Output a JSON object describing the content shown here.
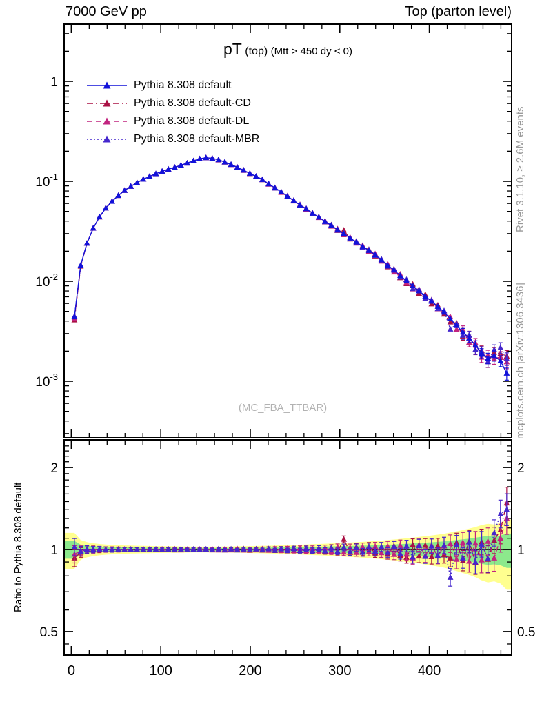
{
  "header": {
    "left": "7000 GeV pp",
    "right": "Top (parton level)"
  },
  "title": {
    "main": "pT",
    "scale": "(top)",
    "cut": "(Mtt > 450 dy < 0)"
  },
  "watermark": "(MC_FBA_TTBAR)",
  "side_note_top": "Rivet 3.1.10, ≥ 2.6M events",
  "side_note_bottom": "mcplots.cern.ch [arXiv:1306.3436]",
  "ratio_ylabel": "Ratio to Pythia 8.308 default",
  "chart_data": {
    "type": "line",
    "title": "pT (top) (Mtt > 450 dy < 0)",
    "xlabel": "",
    "ylabel": "",
    "x_range": [
      -8,
      492
    ],
    "y_range_main": [
      0.00028,
      3.7
    ],
    "y_range_ratio": [
      0.41,
      2.53
    ],
    "x_bin_width": 7,
    "x_major_ticks": [
      {
        "value": 0,
        "label": "0"
      },
      {
        "value": 100,
        "label": "100"
      },
      {
        "value": 200,
        "label": "200"
      },
      {
        "value": 300,
        "label": "300"
      },
      {
        "value": 400,
        "label": "400"
      }
    ],
    "x_minor_step": 20,
    "y_major_ticks_main": [
      {
        "value": 1,
        "base": "1",
        "exp": ""
      },
      {
        "value": 0.1,
        "base": "10",
        "exp": "-1"
      },
      {
        "value": 0.01,
        "base": "10",
        "exp": "-2"
      },
      {
        "value": 0.001,
        "base": "10",
        "exp": "-3"
      }
    ],
    "y_minor_ticks_ratio": [
      0.45,
      0.6,
      0.7,
      0.8,
      0.9,
      1.1,
      1.2,
      1.3,
      1.4,
      1.5,
      1.6,
      1.7,
      1.8,
      1.9,
      2.1,
      2.2,
      2.3,
      2.4
    ],
    "y_major_ticks_ratio": [
      {
        "value": 2,
        "label": "2"
      },
      {
        "value": 1,
        "label": "1"
      },
      {
        "value": 0.5,
        "label": "0.5"
      }
    ],
    "x_centers": [
      3.5,
      10.5,
      17.5,
      24.5,
      31.5,
      38.5,
      45.5,
      52.5,
      59.5,
      66.5,
      73.5,
      80.5,
      87.5,
      94.5,
      101.5,
      108.5,
      115.5,
      122.5,
      129.5,
      136.5,
      143.5,
      150.5,
      157.5,
      164.5,
      171.5,
      178.5,
      185.5,
      192.5,
      199.5,
      206.5,
      213.5,
      220.5,
      227.5,
      234.5,
      241.5,
      248.5,
      255.5,
      262.5,
      269.5,
      276.5,
      283.5,
      290.5,
      297.5,
      304.5,
      311.5,
      318.5,
      325.5,
      332.5,
      339.5,
      346.5,
      353.5,
      360.5,
      367.5,
      374.5,
      381.5,
      388.5,
      395.5,
      402.5,
      409.5,
      416.5,
      423.5,
      430.5,
      437.5,
      444.5,
      451.5,
      458.5,
      465.5,
      472.5,
      479.5,
      486.5
    ],
    "reference": {
      "name": "Pythia 8.308 default",
      "color": "#1212d9",
      "dash": "solid",
      "values": [
        0.0044,
        0.0145,
        0.024,
        0.034,
        0.044,
        0.054,
        0.063,
        0.072,
        0.081,
        0.089,
        0.097,
        0.105,
        0.112,
        0.119,
        0.126,
        0.132,
        0.138,
        0.145,
        0.152,
        0.16,
        0.168,
        0.172,
        0.17,
        0.164,
        0.156,
        0.147,
        0.138,
        0.129,
        0.12,
        0.112,
        0.104,
        0.094,
        0.086,
        0.078,
        0.071,
        0.064,
        0.058,
        0.053,
        0.048,
        0.0437,
        0.0397,
        0.0361,
        0.0328,
        0.0298,
        0.0271,
        0.0246,
        0.0223,
        0.0203,
        0.0184,
        0.0163,
        0.0145,
        0.0129,
        0.0114,
        0.0101,
        0.009,
        0.008,
        0.0071,
        0.0063,
        0.0056,
        0.0049,
        0.0042,
        0.0036,
        0.0031,
        0.0027,
        0.0023,
        0.0019,
        0.0017,
        0.0018,
        0.0016,
        0.0012
      ]
    },
    "variants": [
      {
        "name": "Pythia 8.308 default-CD",
        "color": "#aa1144",
        "dash": "dashdot",
        "ratios": [
          0.93,
          0.975,
          0.998,
          1.003,
          0.997,
          1.001,
          0.999,
          1.002,
          0.998,
          1.001,
          0.999,
          1.002,
          0.997,
          1.001,
          0.999,
          1.003,
          0.996,
          1.002,
          0.998,
          1.001,
          0.998,
          1.003,
          0.996,
          1.004,
          0.995,
          1.002,
          0.997,
          1.005,
          0.993,
          1.003,
          0.994,
          1.006,
          0.992,
          1.007,
          0.99,
          1.008,
          0.991,
          1.009,
          0.988,
          1.01,
          0.985,
          1.015,
          0.98,
          1.09,
          0.975,
          1.02,
          0.982,
          1.025,
          0.97,
          1.018,
          0.96,
          1.03,
          0.95,
          0.935,
          1.04,
          0.945,
          1.035,
          0.94,
          1.03,
          0.955,
          0.93,
          1.06,
          0.91,
          1.07,
          0.895,
          1.065,
          0.92,
          1.08,
          1.18,
          1.48
        ]
      },
      {
        "name": "Pythia 8.308 default-DL",
        "color": "#c1247f",
        "dash": "dashed",
        "ratios": [
          0.96,
          0.99,
          1.004,
          0.996,
          1.002,
          0.998,
          1.003,
          0.997,
          1.002,
          0.999,
          1.001,
          0.998,
          1.003,
          0.997,
          1.002,
          0.999,
          1.004,
          0.996,
          1.001,
          0.998,
          1.002,
          0.997,
          1.004,
          0.995,
          1.003,
          0.996,
          1.005,
          0.994,
          1.004,
          0.996,
          1.005,
          0.993,
          1.007,
          0.991,
          1.008,
          0.99,
          1.01,
          0.989,
          1.008,
          0.99,
          1.012,
          0.984,
          1.02,
          0.978,
          1.016,
          0.975,
          1.022,
          0.98,
          1.025,
          0.972,
          1.028,
          0.958,
          1.035,
          0.96,
          0.93,
          1.04,
          0.95,
          1.035,
          0.945,
          1.028,
          1.05,
          0.92,
          1.06,
          0.905,
          1.055,
          0.915,
          1.07,
          0.93,
          1.1,
          1.3
        ]
      },
      {
        "name": "Pythia 8.308 default-MBR",
        "color": "#4527cd",
        "dash": "dotted",
        "ratios": [
          1.02,
          0.985,
          1.001,
          0.999,
          1.003,
          1.0,
          0.997,
          1.001,
          0.999,
          1.002,
          0.998,
          1.001,
          0.999,
          1.002,
          0.997,
          1.001,
          0.999,
          1.003,
          0.997,
          1.002,
          0.999,
          1.002,
          0.998,
          1.003,
          0.996,
          1.004,
          0.995,
          1.003,
          0.997,
          1.004,
          0.996,
          1.005,
          0.993,
          1.006,
          0.992,
          1.008,
          0.99,
          1.007,
          0.991,
          1.009,
          0.99,
          1.012,
          0.985,
          1.018,
          0.98,
          1.015,
          0.976,
          1.02,
          0.984,
          1.022,
          0.975,
          1.025,
          0.965,
          1.03,
          0.938,
          1.032,
          0.942,
          1.028,
          0.95,
          1.035,
          0.79,
          1.04,
          0.93,
          1.065,
          0.9,
          1.045,
          0.925,
          1.15,
          1.35,
          1.4
        ]
      }
    ],
    "bands": {
      "green_rel_coeff": 0.005,
      "yellow_rel_coeff": 0.01,
      "green_color": "#8ce98c",
      "yellow_color": "#ffff8f"
    },
    "error_rel_coeff": 0.005,
    "legend_position": "top-left",
    "grid": false
  }
}
